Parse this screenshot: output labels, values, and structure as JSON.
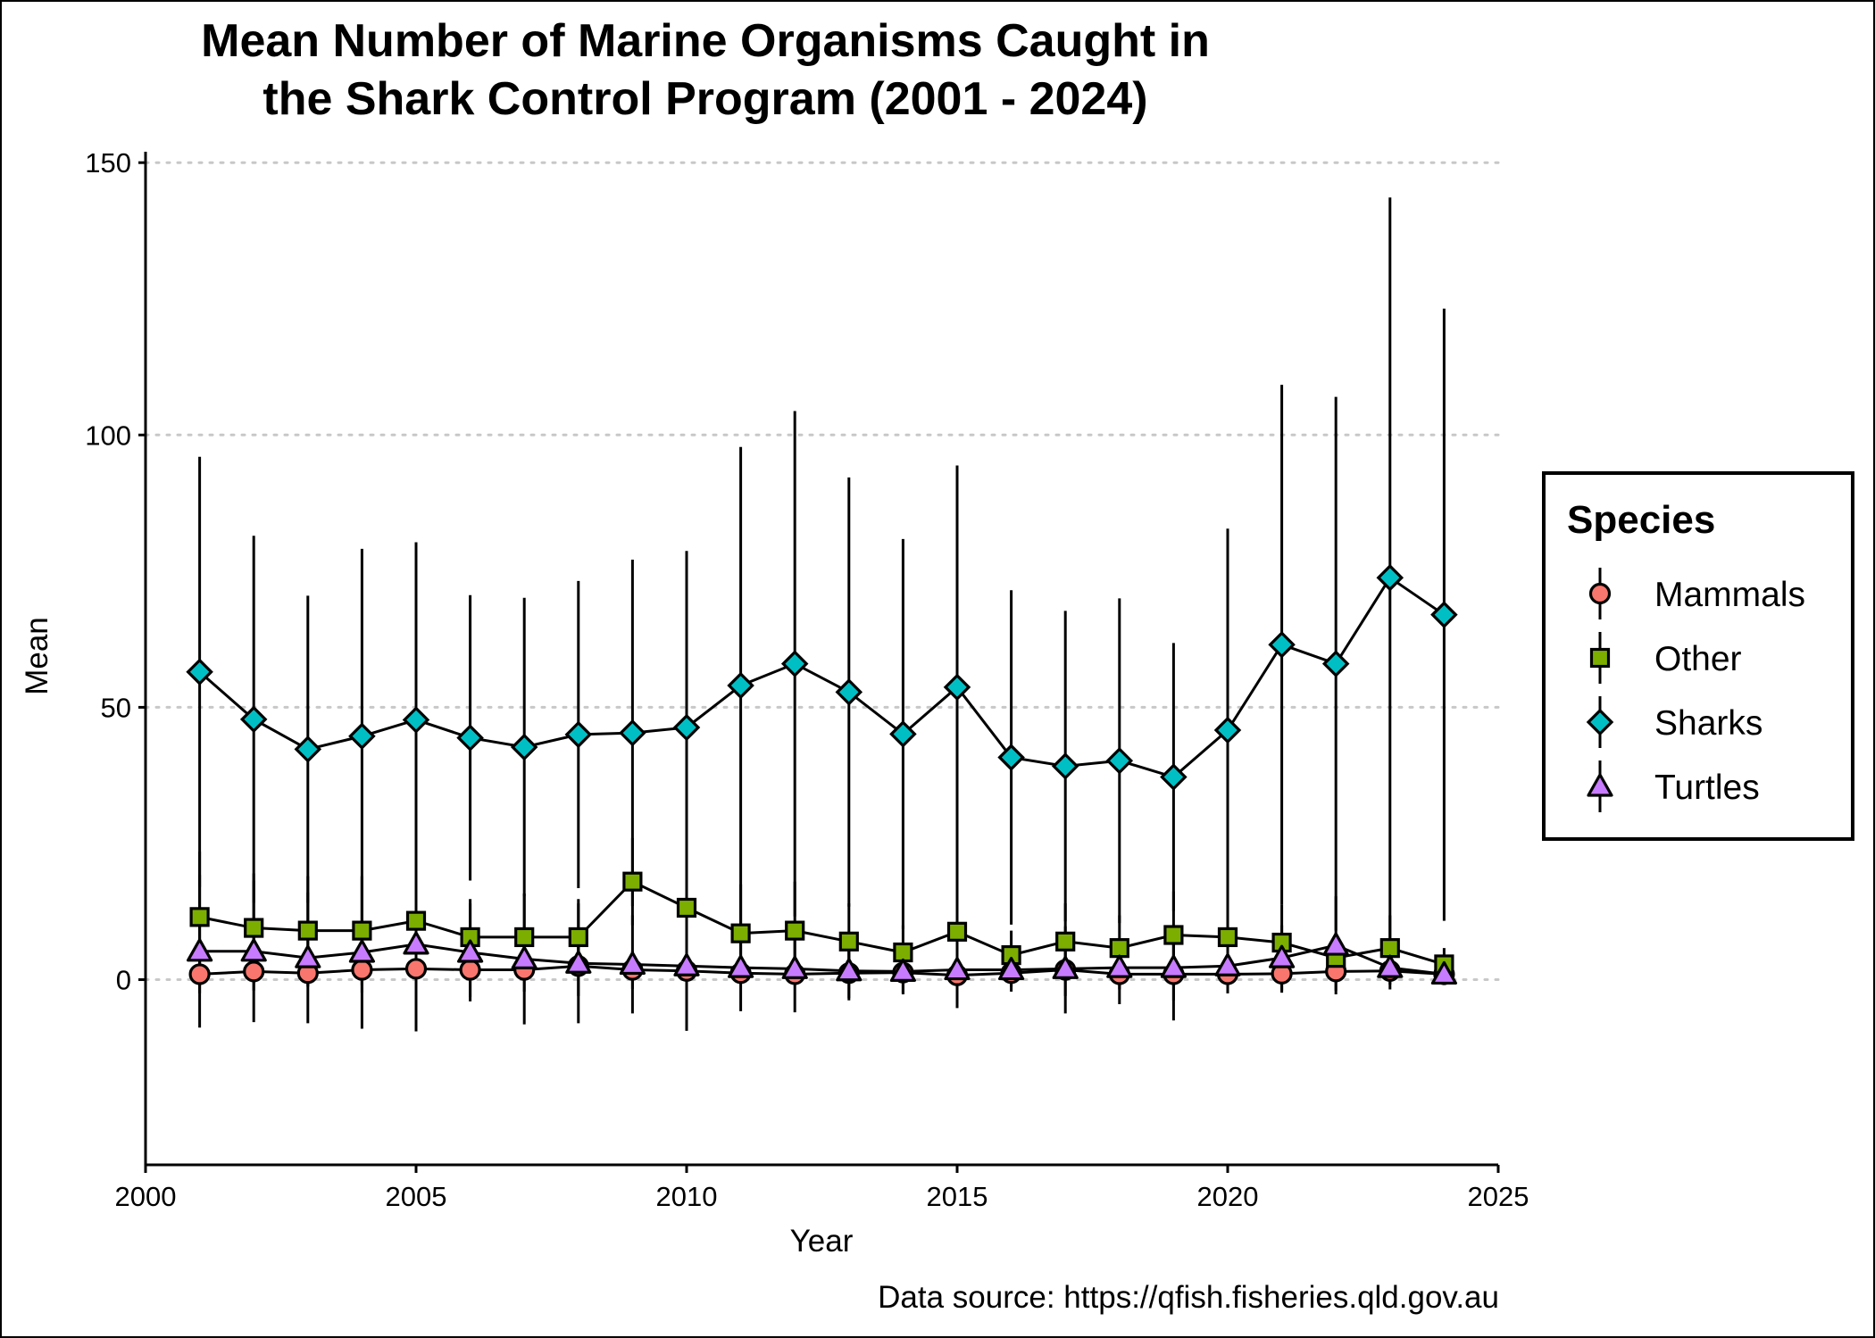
{
  "chart_data": {
    "type": "line",
    "title_lines": [
      "Mean Number of Marine Organisms Caught in",
      "the Shark Control Program (2001 - 2024)"
    ],
    "xlabel": "Year",
    "ylabel": "Mean",
    "caption": "Data source: https://qfish.fisheries.qld.gov.au",
    "xlim": [
      2000,
      2025
    ],
    "ylim": [
      -34,
      152
    ],
    "x_ticks": [
      2000,
      2005,
      2010,
      2015,
      2020,
      2025
    ],
    "y_ticks": [
      0,
      50,
      100,
      150
    ],
    "grid": "horizontal dotted",
    "legend_title": "Species",
    "legend_position": "right",
    "x": [
      2001,
      2002,
      2003,
      2004,
      2005,
      2006,
      2007,
      2008,
      2009,
      2010,
      2011,
      2012,
      2013,
      2014,
      2015,
      2016,
      2017,
      2018,
      2019,
      2020,
      2021,
      2022,
      2023,
      2024
    ],
    "series": [
      {
        "name": "Mammals",
        "marker": "circle",
        "color": "#F8766D",
        "values": [
          1,
          1.5,
          1.2,
          1.8,
          2,
          1.8,
          1.8,
          2.5,
          1.8,
          1.6,
          1.2,
          1,
          1.2,
          1.3,
          0.8,
          1.2,
          1.8,
          1,
          1,
          1,
          1.1,
          1.5,
          1.6,
          1
        ],
        "error": [
          3.5,
          3.5,
          2.5,
          4.2,
          8,
          5,
          4,
          5.5,
          3.5,
          11,
          2,
          1.5,
          5,
          4,
          6,
          2.5,
          8,
          5.5,
          8.5,
          3.5,
          3.5,
          3.5,
          2.5,
          1.5
        ]
      },
      {
        "name": "Other",
        "marker": "square",
        "color": "#7CAE00",
        "values": [
          11.5,
          9.5,
          9,
          9,
          10.8,
          7.8,
          7.8,
          7.8,
          18,
          13.2,
          8.5,
          9,
          7,
          5,
          8.8,
          4.5,
          7,
          5.8,
          8.2,
          7.8,
          6.8,
          4,
          5.8,
          2.8
        ],
        "error": [
          12,
          10,
          10,
          10,
          12,
          7,
          8,
          7,
          8,
          10,
          9,
          9,
          7,
          5,
          10,
          4.5,
          7,
          6,
          8,
          8,
          7,
          4,
          6,
          3
        ]
      },
      {
        "name": "Sharks",
        "marker": "diamond",
        "color": "#00BFC4",
        "values": [
          56.5,
          47.8,
          42.3,
          44.7,
          47.7,
          44.4,
          42.7,
          45,
          45.3,
          46.3,
          54,
          58,
          52.8,
          45.1,
          53.7,
          40.8,
          39.2,
          40.2,
          37.2,
          45.8,
          61.5,
          58,
          73.8,
          67
        ],
        "error": [
          39.5,
          33.7,
          28.2,
          34.4,
          32.6,
          26.2,
          27.4,
          28.2,
          31.8,
          32.4,
          43.8,
          46.4,
          39.4,
          35.8,
          40.7,
          30.7,
          28.5,
          29.8,
          24.6,
          37,
          47.7,
          49,
          69.8,
          56.2
        ]
      },
      {
        "name": "Turtles",
        "marker": "triangle",
        "color": "#C77CFF",
        "values": [
          5.2,
          5.2,
          4,
          5,
          6.5,
          5,
          3.8,
          3,
          2.8,
          2.5,
          2.2,
          2,
          1.6,
          1.5,
          1.8,
          1.8,
          2,
          2.2,
          2.2,
          2.5,
          4,
          6.3,
          2.2,
          1
        ],
        "error": [
          14,
          13,
          12,
          14,
          16,
          9,
          12,
          11,
          9,
          10,
          8,
          8,
          5,
          4,
          7,
          4,
          5,
          4,
          6,
          5,
          6,
          9,
          4,
          2
        ]
      }
    ]
  }
}
